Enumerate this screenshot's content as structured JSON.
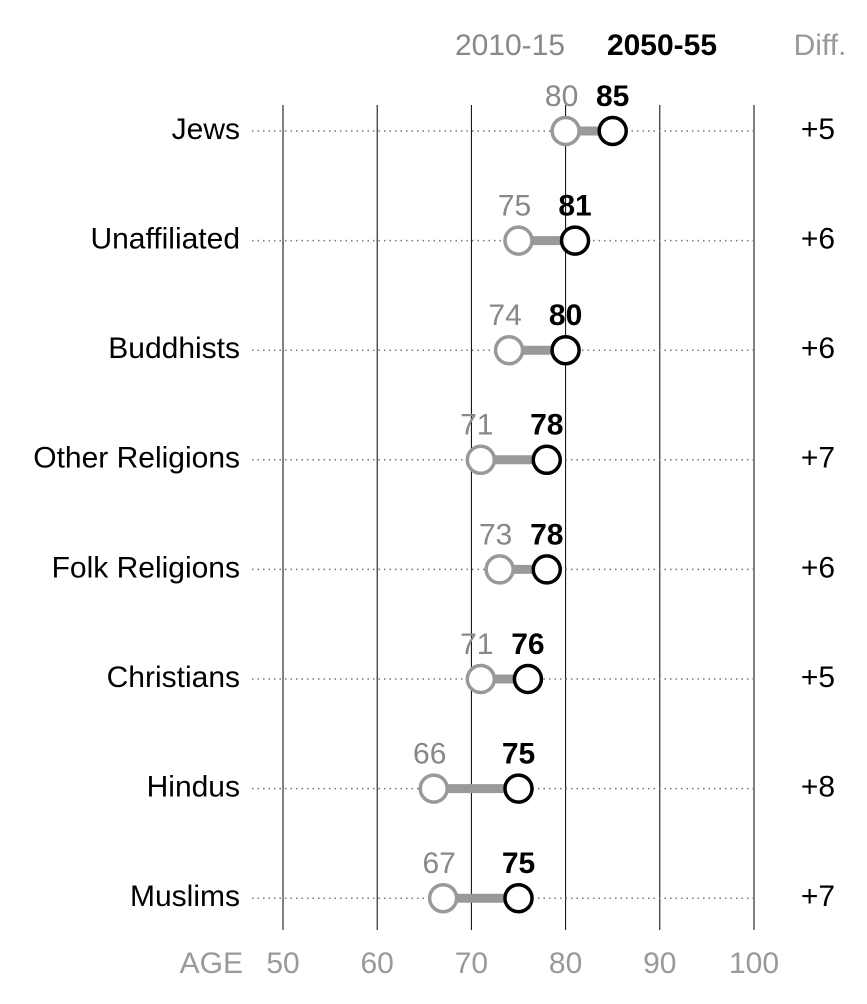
{
  "chart_data": {
    "type": "dumbbell",
    "categories": [
      "Jews",
      "Unaffiliated",
      "Buddhists",
      "Other Religions",
      "Folk Religions",
      "Christians",
      "Hindus",
      "Muslims"
    ],
    "series": [
      {
        "name": "2010-15",
        "color": "#999999",
        "values": [
          80,
          75,
          74,
          71,
          73,
          71,
          66,
          67
        ]
      },
      {
        "name": "2050-55",
        "color": "#000000",
        "values": [
          85,
          81,
          80,
          78,
          78,
          76,
          75,
          75
        ]
      }
    ],
    "diff": {
      "title": "Diff.",
      "values": [
        5,
        6,
        6,
        7,
        6,
        5,
        8,
        7
      ],
      "value_labels": [
        "+5",
        "+6",
        "+6",
        "+7",
        "+6",
        "+5",
        "+8",
        "+7"
      ]
    },
    "xlabel": "AGE",
    "xlim": [
      50,
      100
    ],
    "xticks": [
      50,
      60,
      70,
      80,
      90,
      100
    ],
    "grid": true
  }
}
